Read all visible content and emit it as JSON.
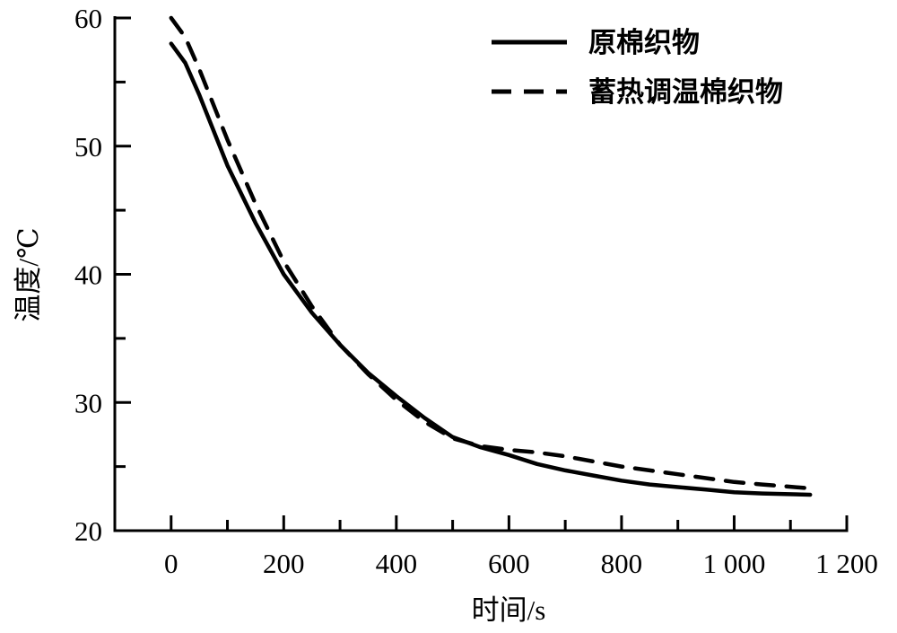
{
  "chart_data": {
    "type": "line",
    "title": "",
    "xlabel": "时间/s",
    "ylabel": "温度/℃",
    "xlim": [
      -100,
      1200
    ],
    "ylim": [
      20,
      60
    ],
    "xticks": [
      0,
      200,
      400,
      600,
      800,
      1000,
      1200
    ],
    "xtick_labels": [
      "0",
      "200",
      "400",
      "600",
      "800",
      "1 000",
      "1 200"
    ],
    "yticks": [
      20,
      30,
      40,
      50,
      60
    ],
    "ytick_labels": [
      "20",
      "30",
      "40",
      "50",
      "60"
    ],
    "grid": false,
    "legend_position": "top-right",
    "series": [
      {
        "name": "原棉织物",
        "style": "solid",
        "color": "#000000",
        "x": [
          0,
          25,
          50,
          100,
          150,
          200,
          250,
          300,
          350,
          400,
          450,
          500,
          550,
          600,
          650,
          700,
          750,
          800,
          850,
          900,
          950,
          1000,
          1050,
          1135
        ],
        "y": [
          58,
          56.5,
          54,
          48.5,
          44,
          40,
          37,
          34.5,
          32.3,
          30.5,
          28.8,
          27.3,
          26.5,
          25.9,
          25.2,
          24.7,
          24.3,
          23.9,
          23.6,
          23.4,
          23.2,
          23.0,
          22.9,
          22.8
        ]
      },
      {
        "name": "蓄热调温棉织物",
        "style": "dashed",
        "color": "#000000",
        "x": [
          0,
          25,
          50,
          100,
          150,
          200,
          250,
          300,
          350,
          400,
          450,
          500,
          550,
          600,
          650,
          700,
          750,
          800,
          850,
          900,
          950,
          1000,
          1050,
          1135
        ],
        "y": [
          60,
          58.5,
          56,
          50.5,
          45.5,
          41,
          37.5,
          34.5,
          32.2,
          30.2,
          28.5,
          27.2,
          26.6,
          26.3,
          26.1,
          25.8,
          25.4,
          25.0,
          24.7,
          24.4,
          24.1,
          23.8,
          23.6,
          23.3
        ]
      }
    ]
  }
}
